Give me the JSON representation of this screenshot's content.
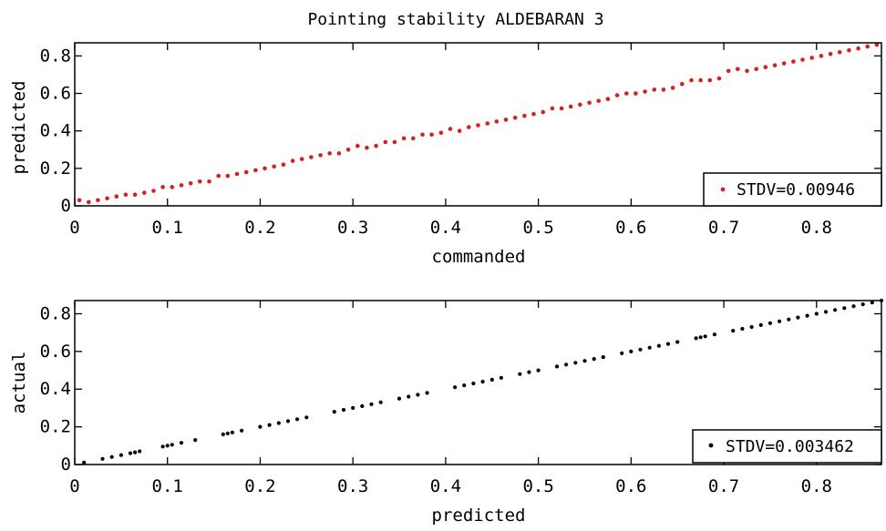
{
  "page_title": "Pointing stability ALDEBARAN 3",
  "colors": {
    "series_top": "#d42020",
    "series_bottom": "#000000",
    "axes": "#000000",
    "background": "#ffffff"
  },
  "chart_data": [
    {
      "type": "scatter",
      "title": "Pointing stability ALDEBARAN 3",
      "xlabel": "commanded",
      "ylabel": "predicted",
      "xlim": [
        0,
        0.87
      ],
      "ylim": [
        0,
        0.87
      ],
      "xticks": [
        "0",
        "0.1",
        "0.2",
        "0.3",
        "0.4",
        "0.5",
        "0.6",
        "0.7",
        "0.8"
      ],
      "yticks": [
        "0",
        "0.2",
        "0.4",
        "0.6",
        "0.8"
      ],
      "grid": false,
      "legend_position": "bottom-right",
      "legend": [
        "STDV=0.00946"
      ],
      "series": [
        {
          "name": "STDV=0.00946",
          "color": "#d42020",
          "x": [
            0.005,
            0.015,
            0.025,
            0.035,
            0.045,
            0.055,
            0.065,
            0.075,
            0.085,
            0.095,
            0.105,
            0.115,
            0.125,
            0.135,
            0.145,
            0.155,
            0.165,
            0.175,
            0.185,
            0.195,
            0.205,
            0.215,
            0.225,
            0.235,
            0.245,
            0.255,
            0.265,
            0.275,
            0.285,
            0.295,
            0.305,
            0.315,
            0.325,
            0.335,
            0.345,
            0.355,
            0.365,
            0.375,
            0.385,
            0.395,
            0.405,
            0.415,
            0.425,
            0.435,
            0.445,
            0.455,
            0.465,
            0.475,
            0.485,
            0.495,
            0.505,
            0.515,
            0.525,
            0.535,
            0.545,
            0.555,
            0.565,
            0.575,
            0.585,
            0.595,
            0.605,
            0.615,
            0.625,
            0.635,
            0.645,
            0.655,
            0.665,
            0.675,
            0.685,
            0.695,
            0.705,
            0.715,
            0.725,
            0.735,
            0.745,
            0.755,
            0.765,
            0.775,
            0.785,
            0.795,
            0.805,
            0.815,
            0.825,
            0.835,
            0.845,
            0.855,
            0.865
          ],
          "y": [
            0.03,
            0.02,
            0.03,
            0.04,
            0.05,
            0.06,
            0.06,
            0.07,
            0.08,
            0.1,
            0.1,
            0.11,
            0.12,
            0.13,
            0.13,
            0.16,
            0.16,
            0.17,
            0.18,
            0.19,
            0.2,
            0.21,
            0.22,
            0.24,
            0.25,
            0.26,
            0.27,
            0.28,
            0.28,
            0.3,
            0.32,
            0.31,
            0.32,
            0.34,
            0.34,
            0.36,
            0.36,
            0.38,
            0.38,
            0.39,
            0.41,
            0.4,
            0.42,
            0.43,
            0.44,
            0.45,
            0.46,
            0.47,
            0.48,
            0.49,
            0.5,
            0.52,
            0.52,
            0.53,
            0.54,
            0.55,
            0.56,
            0.57,
            0.59,
            0.6,
            0.6,
            0.61,
            0.62,
            0.62,
            0.63,
            0.65,
            0.67,
            0.67,
            0.67,
            0.68,
            0.72,
            0.73,
            0.72,
            0.73,
            0.74,
            0.75,
            0.76,
            0.77,
            0.78,
            0.79,
            0.8,
            0.81,
            0.82,
            0.83,
            0.84,
            0.85,
            0.86
          ]
        }
      ]
    },
    {
      "type": "scatter",
      "title": "",
      "xlabel": "predicted",
      "ylabel": "actual",
      "xlim": [
        0,
        0.87
      ],
      "ylim": [
        0,
        0.87
      ],
      "xticks": [
        "0",
        "0.1",
        "0.2",
        "0.3",
        "0.4",
        "0.5",
        "0.6",
        "0.7",
        "0.8"
      ],
      "yticks": [
        "0",
        "0.2",
        "0.4",
        "0.6",
        "0.8"
      ],
      "grid": false,
      "legend_position": "bottom-right",
      "legend": [
        "STDV=0.003462"
      ],
      "series": [
        {
          "name": "STDV=0.003462",
          "color": "#000000",
          "x": [
            0.01,
            0.03,
            0.04,
            0.05,
            0.06,
            0.065,
            0.07,
            0.095,
            0.1,
            0.105,
            0.115,
            0.13,
            0.16,
            0.165,
            0.17,
            0.18,
            0.2,
            0.21,
            0.22,
            0.23,
            0.24,
            0.25,
            0.28,
            0.29,
            0.3,
            0.31,
            0.32,
            0.33,
            0.35,
            0.36,
            0.37,
            0.38,
            0.41,
            0.42,
            0.43,
            0.44,
            0.45,
            0.46,
            0.48,
            0.49,
            0.5,
            0.52,
            0.53,
            0.54,
            0.55,
            0.56,
            0.57,
            0.59,
            0.6,
            0.61,
            0.62,
            0.63,
            0.64,
            0.65,
            0.67,
            0.675,
            0.68,
            0.69,
            0.71,
            0.72,
            0.73,
            0.74,
            0.75,
            0.76,
            0.77,
            0.78,
            0.79,
            0.8,
            0.81,
            0.82,
            0.83,
            0.84,
            0.85,
            0.86,
            0.87
          ],
          "y": [
            0.01,
            0.03,
            0.04,
            0.05,
            0.06,
            0.065,
            0.07,
            0.095,
            0.1,
            0.105,
            0.115,
            0.13,
            0.16,
            0.165,
            0.17,
            0.18,
            0.2,
            0.21,
            0.22,
            0.23,
            0.24,
            0.25,
            0.28,
            0.29,
            0.3,
            0.31,
            0.32,
            0.33,
            0.35,
            0.36,
            0.37,
            0.38,
            0.41,
            0.42,
            0.43,
            0.44,
            0.45,
            0.46,
            0.48,
            0.49,
            0.5,
            0.52,
            0.53,
            0.54,
            0.55,
            0.56,
            0.57,
            0.59,
            0.6,
            0.61,
            0.62,
            0.63,
            0.64,
            0.65,
            0.67,
            0.675,
            0.68,
            0.69,
            0.71,
            0.72,
            0.73,
            0.74,
            0.75,
            0.76,
            0.77,
            0.78,
            0.79,
            0.8,
            0.81,
            0.82,
            0.83,
            0.84,
            0.85,
            0.86,
            0.87
          ]
        }
      ]
    }
  ]
}
